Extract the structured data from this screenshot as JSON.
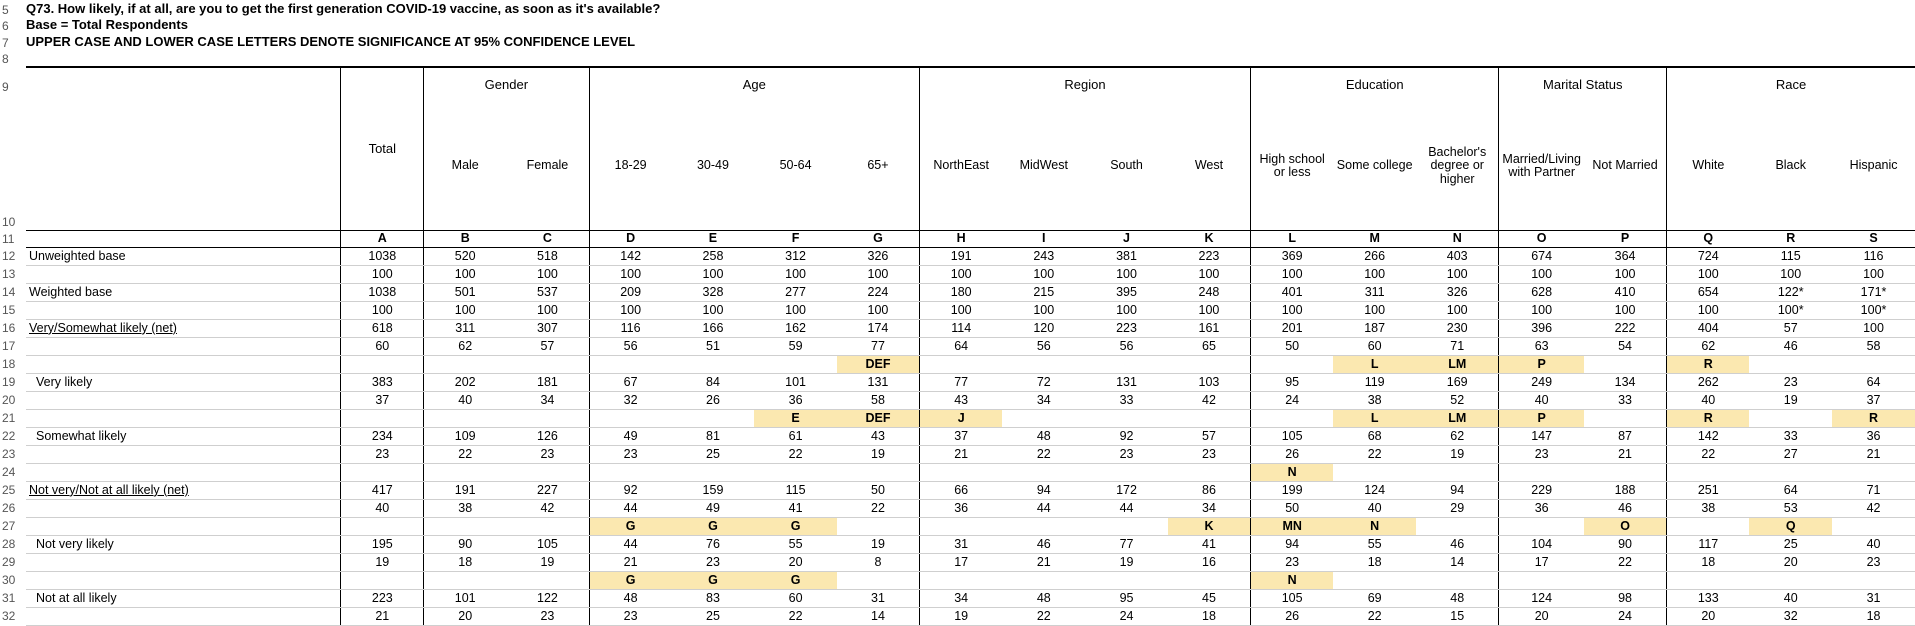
{
  "header": {
    "question": "Q73. How likely, if at all, are you to get the first generation COVID-19 vaccine, as soon as it's available?",
    "base": "Base = Total Respondents",
    "note": "UPPER CASE AND LOWER CASE LETTERS DENOTE SIGNIFICANCE AT 95% CONFIDENCE LEVEL"
  },
  "row_numbers": [
    "5",
    "6",
    "7",
    "8",
    "9",
    "10",
    "11",
    "12",
    "13",
    "14",
    "15",
    "16",
    "17",
    "18",
    "19",
    "20",
    "21",
    "22",
    "23",
    "24",
    "25",
    "26",
    "27",
    "28",
    "29",
    "30",
    "31",
    "32"
  ],
  "total_label": "Total",
  "groups": [
    "Gender",
    "Age",
    "Region",
    "Education",
    "Marital Status",
    "Race"
  ],
  "columns": [
    "Male",
    "Female",
    "18-29",
    "30-49",
    "50-64",
    "65+",
    "NorthEast",
    "MidWest",
    "South",
    "West",
    "High school or less",
    "Some college",
    "Bachelor's degree or higher",
    "Married/Living with Partner",
    "Not Married",
    "White",
    "Black",
    "Hispanic"
  ],
  "letters": [
    "A",
    "B",
    "C",
    "D",
    "E",
    "F",
    "G",
    "H",
    "I",
    "J",
    "K",
    "L",
    "M",
    "N",
    "O",
    "P",
    "Q",
    "R",
    "S"
  ],
  "rows": [
    {
      "label": "Unweighted base",
      "values": [
        "1038",
        "520",
        "518",
        "142",
        "258",
        "312",
        "326",
        "191",
        "243",
        "381",
        "223",
        "369",
        "266",
        "403",
        "674",
        "364",
        "724",
        "115",
        "116"
      ]
    },
    {
      "label": "",
      "values": [
        "100",
        "100",
        "100",
        "100",
        "100",
        "100",
        "100",
        "100",
        "100",
        "100",
        "100",
        "100",
        "100",
        "100",
        "100",
        "100",
        "100",
        "100",
        "100"
      ]
    },
    {
      "label": "Weighted base",
      "values": [
        "1038",
        "501",
        "537",
        "209",
        "328",
        "277",
        "224",
        "180",
        "215",
        "395",
        "248",
        "401",
        "311",
        "326",
        "628",
        "410",
        "654",
        "122*",
        "171*"
      ]
    },
    {
      "label": "",
      "values": [
        "100",
        "100",
        "100",
        "100",
        "100",
        "100",
        "100",
        "100",
        "100",
        "100",
        "100",
        "100",
        "100",
        "100",
        "100",
        "100",
        "100",
        "100*",
        "100*"
      ]
    },
    {
      "label": "Very/Somewhat likely (net)",
      "values": [
        "618",
        "311",
        "307",
        "116",
        "166",
        "162",
        "174",
        "114",
        "120",
        "223",
        "161",
        "201",
        "187",
        "230",
        "396",
        "222",
        "404",
        "57",
        "100"
      ]
    },
    {
      "label": "",
      "values": [
        "60",
        "62",
        "57",
        "56",
        "51",
        "59",
        "77",
        "64",
        "56",
        "56",
        "65",
        "50",
        "60",
        "71",
        "63",
        "54",
        "62",
        "46",
        "58"
      ]
    },
    {
      "label": "",
      "values": [
        "",
        "",
        "",
        "",
        "",
        "",
        "DEF",
        "",
        "",
        "",
        "",
        "",
        "L",
        "LM",
        "P",
        "",
        "R",
        "",
        ""
      ]
    },
    {
      "label": "Very likely",
      "values": [
        "383",
        "202",
        "181",
        "67",
        "84",
        "101",
        "131",
        "77",
        "72",
        "131",
        "103",
        "95",
        "119",
        "169",
        "249",
        "134",
        "262",
        "23",
        "64"
      ]
    },
    {
      "label": "",
      "values": [
        "37",
        "40",
        "34",
        "32",
        "26",
        "36",
        "58",
        "43",
        "34",
        "33",
        "42",
        "24",
        "38",
        "52",
        "40",
        "33",
        "40",
        "19",
        "37"
      ]
    },
    {
      "label": "",
      "values": [
        "",
        "",
        "",
        "",
        "",
        "E",
        "DEF",
        "J",
        "",
        "",
        "",
        "",
        "L",
        "LM",
        "P",
        "",
        "R",
        "",
        "R"
      ]
    },
    {
      "label": "Somewhat likely",
      "values": [
        "234",
        "109",
        "126",
        "49",
        "81",
        "61",
        "43",
        "37",
        "48",
        "92",
        "57",
        "105",
        "68",
        "62",
        "147",
        "87",
        "142",
        "33",
        "36"
      ]
    },
    {
      "label": "",
      "values": [
        "23",
        "22",
        "23",
        "23",
        "25",
        "22",
        "19",
        "21",
        "22",
        "23",
        "23",
        "26",
        "22",
        "19",
        "23",
        "21",
        "22",
        "27",
        "21"
      ]
    },
    {
      "label": "",
      "values": [
        "",
        "",
        "",
        "",
        "",
        "",
        "",
        "",
        "",
        "",
        "",
        "N",
        "",
        "",
        "",
        "",
        "",
        "",
        ""
      ]
    },
    {
      "label": "Not very/Not at all likely (net)",
      "values": [
        "417",
        "191",
        "227",
        "92",
        "159",
        "115",
        "50",
        "66",
        "94",
        "172",
        "86",
        "199",
        "124",
        "94",
        "229",
        "188",
        "251",
        "64",
        "71"
      ]
    },
    {
      "label": "",
      "values": [
        "40",
        "38",
        "42",
        "44",
        "49",
        "41",
        "22",
        "36",
        "44",
        "44",
        "34",
        "50",
        "40",
        "29",
        "36",
        "46",
        "38",
        "53",
        "42"
      ]
    },
    {
      "label": "",
      "values": [
        "",
        "",
        "",
        "G",
        "G",
        "G",
        "",
        "",
        "",
        "",
        "K",
        "MN",
        "N",
        "",
        "",
        "O",
        "",
        "Q",
        ""
      ]
    },
    {
      "label": "Not very likely",
      "values": [
        "195",
        "90",
        "105",
        "44",
        "76",
        "55",
        "19",
        "31",
        "46",
        "77",
        "41",
        "94",
        "55",
        "46",
        "104",
        "90",
        "117",
        "25",
        "40"
      ]
    },
    {
      "label": "",
      "values": [
        "19",
        "18",
        "19",
        "21",
        "23",
        "20",
        "8",
        "17",
        "21",
        "19",
        "16",
        "23",
        "18",
        "14",
        "17",
        "22",
        "18",
        "20",
        "23"
      ]
    },
    {
      "label": "",
      "values": [
        "",
        "",
        "",
        "G",
        "G",
        "G",
        "",
        "",
        "",
        "",
        "",
        "N",
        "",
        "",
        "",
        "",
        "",
        "",
        ""
      ]
    },
    {
      "label": "Not at all likely",
      "values": [
        "223",
        "101",
        "122",
        "48",
        "83",
        "60",
        "31",
        "34",
        "48",
        "95",
        "45",
        "105",
        "69",
        "48",
        "124",
        "98",
        "133",
        "40",
        "31"
      ]
    },
    {
      "label": "",
      "values": [
        "21",
        "20",
        "23",
        "23",
        "25",
        "22",
        "14",
        "19",
        "22",
        "24",
        "18",
        "26",
        "22",
        "15",
        "20",
        "24",
        "20",
        "32",
        "18"
      ]
    }
  ]
}
